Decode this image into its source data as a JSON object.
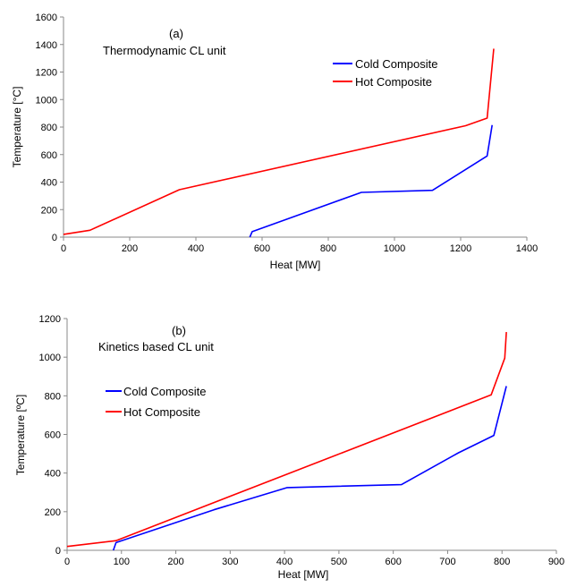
{
  "chart_data": [
    {
      "type": "line",
      "annotation_top": "(a)",
      "annotation": "Thermodynamic CL unit",
      "xlabel": "Heat [MW]",
      "ylabel": "Temperature [°C]",
      "xlim": [
        0,
        1400
      ],
      "ylim": [
        0,
        1600
      ],
      "xticks": [
        "0",
        "200",
        "400",
        "600",
        "800",
        "1000",
        "1200",
        "1400"
      ],
      "yticks": [
        "0",
        "200",
        "400",
        "600",
        "800",
        "1000",
        "1200",
        "1400",
        "1600"
      ],
      "xtick_values": [
        0,
        200,
        400,
        600,
        800,
        1000,
        1200,
        1400
      ],
      "ytick_values": [
        0,
        200,
        400,
        600,
        800,
        1000,
        1200,
        1400,
        1600
      ],
      "grid": false,
      "legend": "top-right",
      "series": [
        {
          "name": "Cold Composite",
          "color": "#0000ff",
          "x": [
            563,
            570,
            680,
            900,
            1115,
            1280,
            1295
          ],
          "y": [
            0,
            40,
            135,
            325,
            340,
            590,
            815
          ]
        },
        {
          "name": "Hot Composite",
          "color": "#ff0000",
          "x": [
            0,
            80,
            350,
            1215,
            1280,
            1300
          ],
          "y": [
            20,
            50,
            345,
            810,
            865,
            1370
          ]
        }
      ]
    },
    {
      "type": "line",
      "annotation_top": "(b)",
      "annotation": "Kinetics based CL unit",
      "xlabel": "Heat [MW]",
      "ylabel": "Temperature [ºC]",
      "xlim": [
        0,
        900
      ],
      "ylim": [
        0,
        1200
      ],
      "xticks": [
        "0",
        "100",
        "200",
        "300",
        "400",
        "500",
        "600",
        "700",
        "800",
        "900"
      ],
      "yticks": [
        "0",
        "200",
        "400",
        "600",
        "800",
        "1000",
        "1200"
      ],
      "xtick_values": [
        0,
        100,
        200,
        300,
        400,
        500,
        600,
        700,
        800,
        900
      ],
      "ytick_values": [
        0,
        200,
        400,
        600,
        800,
        1000,
        1200
      ],
      "grid": false,
      "legend": "left",
      "series": [
        {
          "name": "Cold Composite",
          "color": "#0000ff",
          "x": [
            85,
            90,
            270,
            405,
            615,
            720,
            785,
            808
          ],
          "y": [
            0,
            40,
            210,
            325,
            340,
            505,
            595,
            850
          ]
        },
        {
          "name": "Hot Composite",
          "color": "#ff0000",
          "x": [
            0,
            90,
            780,
            805,
            808
          ],
          "y": [
            20,
            50,
            805,
            995,
            1130
          ]
        }
      ]
    }
  ]
}
